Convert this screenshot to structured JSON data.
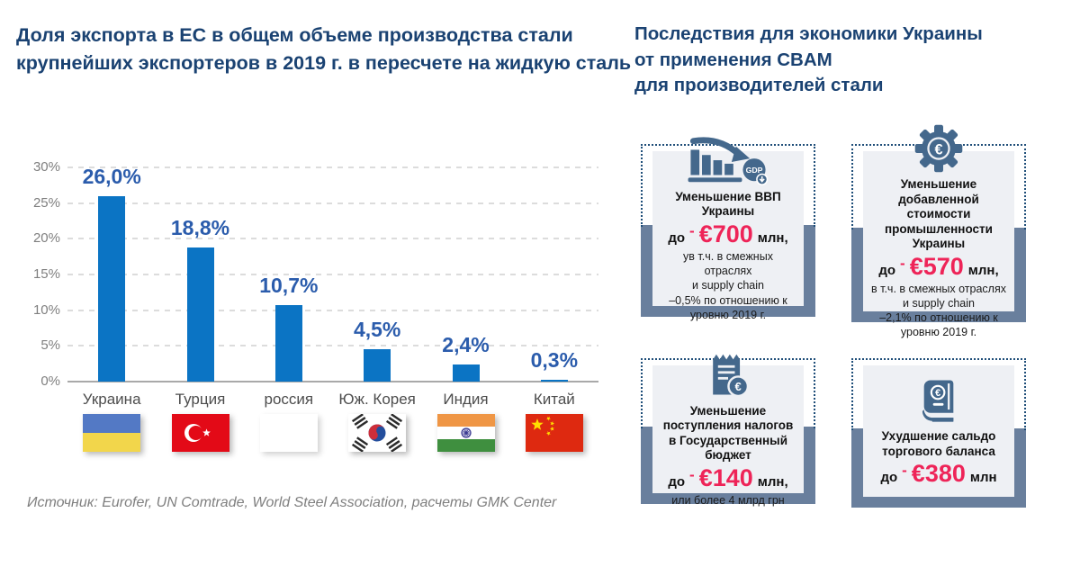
{
  "left": {
    "title": "Доля экспорта в ЕС в общем объеме производства стали\nкрупнейших экспортеров в 2019 г. в пересчете на жидкую сталь",
    "source": "Источник: Eurofer, UN Comtrade, World Steel Association, расчеты GMK Center"
  },
  "chart_data": {
    "type": "bar",
    "title": "Доля экспорта в ЕС в общем объеме производства стали крупнейших экспортеров в 2019 г. в пересчете на жидкую сталь",
    "categories": [
      "Украина",
      "Турция",
      "россия",
      "Юж. Корея",
      "Индия",
      "Китай"
    ],
    "values": [
      26.0,
      18.8,
      10.7,
      4.5,
      2.4,
      0.3
    ],
    "value_labels": [
      "26,0%",
      "18,8%",
      "10,7%",
      "4,5%",
      "2,4%",
      "0,3%"
    ],
    "flags": [
      "ukraine-flag",
      "turkey-flag",
      "blank-flag",
      "south-korea-flag",
      "india-flag",
      "china-flag"
    ],
    "yticks": [
      0,
      5,
      10,
      15,
      20,
      25,
      30
    ],
    "ytick_labels": [
      "0%",
      "5%",
      "10%",
      "15%",
      "20%",
      "25%",
      "30%"
    ],
    "ylim": [
      0,
      30
    ],
    "grid": true,
    "legend": "none",
    "bar_color": "#0b74c4",
    "value_label_color": "#2b5cac"
  },
  "right": {
    "title": "Последствия для экономики Украины\nот применения CBAM\nдля производителей стали",
    "cards": [
      {
        "icon": "gdp-decline-icon",
        "title": "Уменьшение ВВП Украины",
        "prefix": "до",
        "dash": "-",
        "amount": "€700",
        "suffix": "млн,",
        "note": "ув т.ч. в смежных отраслях\nи supply chain\n–0,5% по отношению к уровню 2019 г."
      },
      {
        "icon": "gear-euro-icon",
        "title": "Уменьшение добавленной стоимости промышленности Украины",
        "prefix": "до",
        "dash": "-",
        "amount": "€570",
        "suffix": "млн,",
        "note": "в т.ч. в смежных отраслях и supply chain\n–2,1% по отношению к уровню 2019 г."
      },
      {
        "icon": "tax-receipt-icon",
        "title": "Уменьшение поступления налогов в Государственный бюджет",
        "prefix": "до",
        "dash": "-",
        "amount": "€140",
        "suffix": "млн,",
        "note": "или более 4 млрд грн"
      },
      {
        "icon": "ledger-euro-icon",
        "title": "Ухудшение сальдо торгового баланса",
        "prefix": "до",
        "dash": "-",
        "amount": "€380",
        "suffix": "млн",
        "note": ""
      }
    ]
  },
  "colors": {
    "navy_title": "#1a4272",
    "bar_blue": "#0b74c4",
    "value_blue": "#2b5cac",
    "accent_pink": "#ee2458",
    "card_tray": "#697f9d",
    "card_panel": "#eef0f4",
    "icon_steel": "#44688c",
    "grid_gray": "#dcdcdc",
    "axis_gray": "#a9a9a9"
  }
}
